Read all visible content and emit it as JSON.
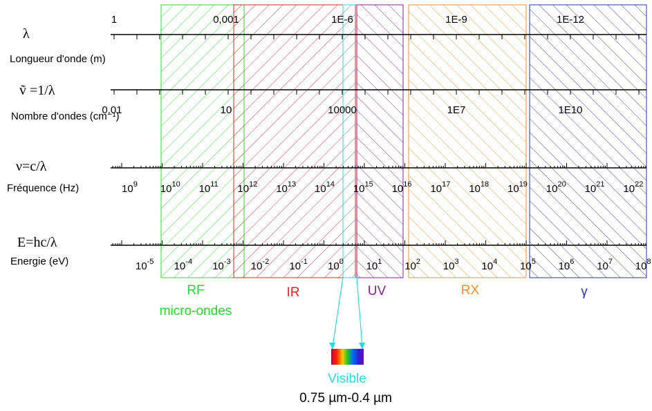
{
  "axes": {
    "wavelength": {
      "symbol": "λ",
      "name": "Longueur d'onde (m)",
      "ticks": [
        "1",
        "0,001",
        "1E-6",
        "1E-9",
        "1E-12"
      ]
    },
    "wavenumber": {
      "symbol": "ṽ =1/λ",
      "name": "Nombre d'ondes (cm⁻¹)",
      "ticks": [
        "0,01",
        "10",
        "10000",
        "1E7",
        "1E10"
      ]
    },
    "frequency": {
      "symbol": "ν=c/λ",
      "name": "Fréquence (Hz)",
      "exponents": [
        "9",
        "10",
        "11",
        "12",
        "13",
        "14",
        "15",
        "16",
        "17",
        "18",
        "19",
        "20",
        "21",
        "22"
      ]
    },
    "energy": {
      "symbol": "E=hc/λ",
      "name": "Energie (eV)",
      "exponents": [
        "-5",
        "-4",
        "-3",
        "-2",
        "-1",
        "0",
        "1",
        "2",
        "3",
        "4",
        "5",
        "6",
        "7",
        "8"
      ]
    }
  },
  "bands": [
    {
      "key": "rf",
      "label": "RF",
      "sublabel": "micro-ondes",
      "color": "#22dd22"
    },
    {
      "key": "ir",
      "label": "IR",
      "color": "#ee2222"
    },
    {
      "key": "visible",
      "label": "",
      "color": "#22dddd"
    },
    {
      "key": "uv",
      "label": "UV",
      "color": "#882299"
    },
    {
      "key": "rx",
      "label": "RX",
      "color": "#f28c28"
    },
    {
      "key": "gamma",
      "label": "γ",
      "color": "#2233bb"
    }
  ],
  "visible": {
    "label": "Visible",
    "range": "0.75 µm-0.4 µm",
    "color": "#22dddd"
  }
}
